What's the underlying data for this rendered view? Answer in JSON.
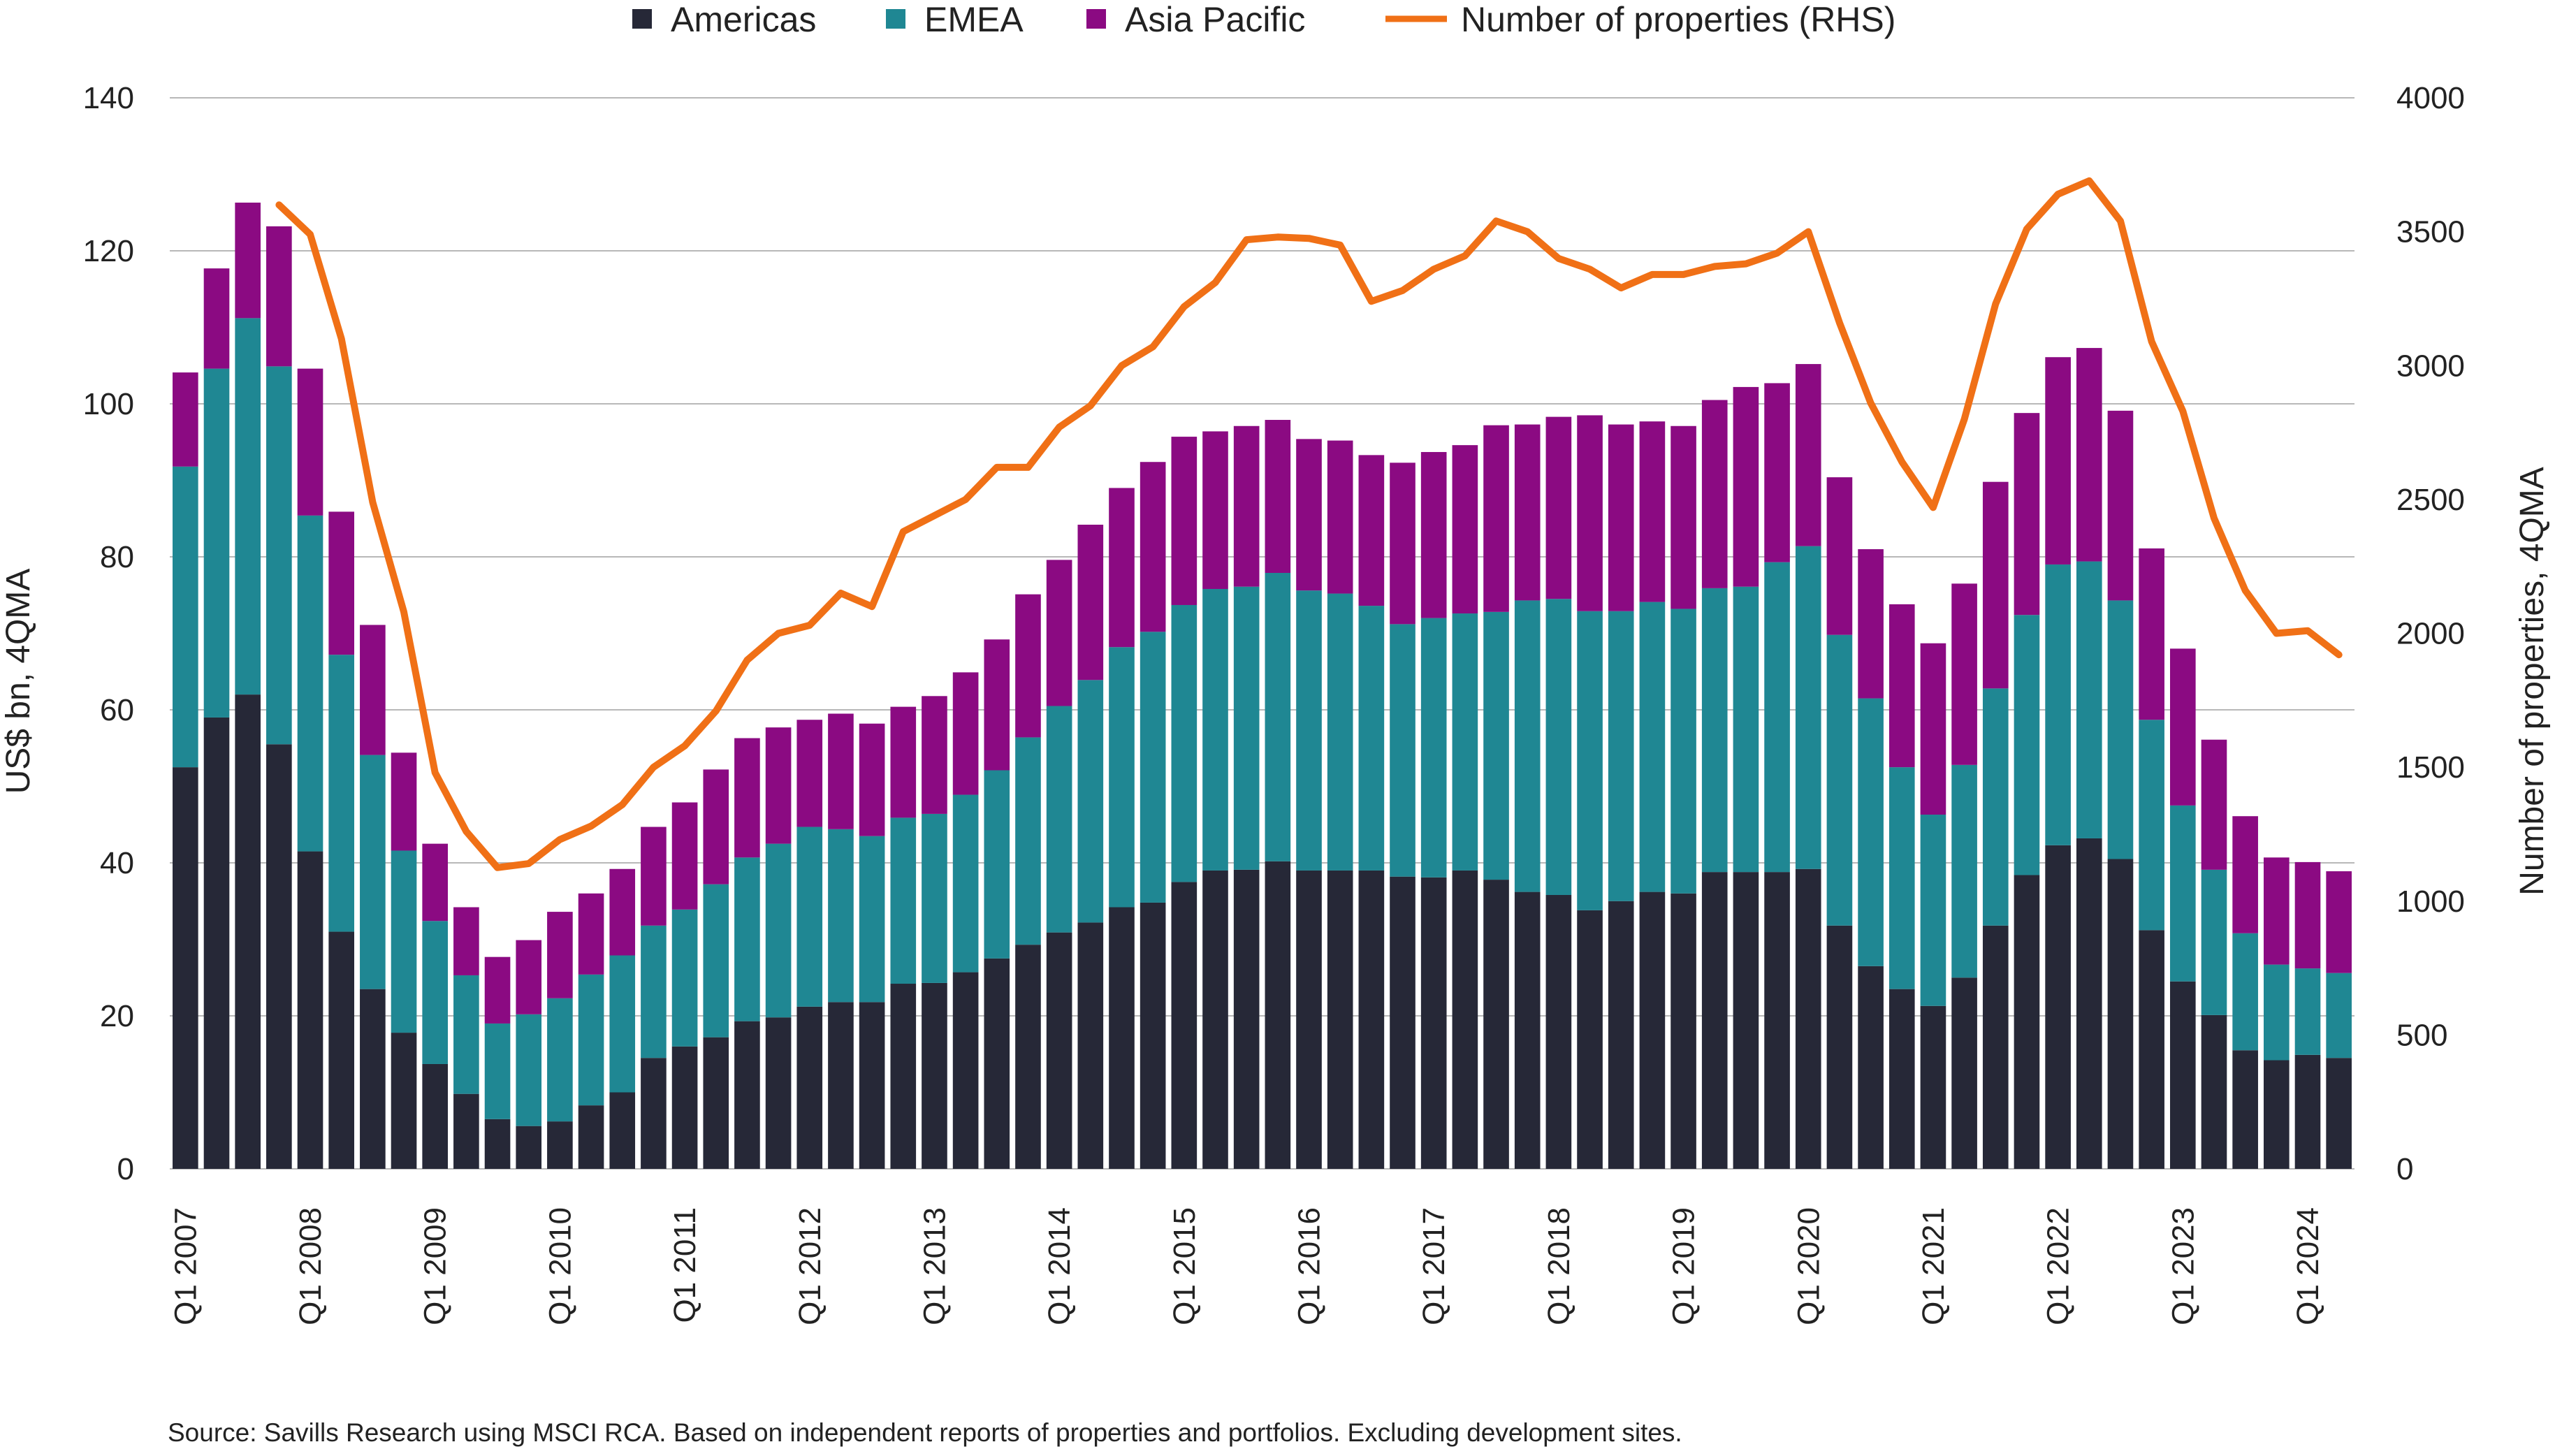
{
  "chart_data": {
    "type": "bar",
    "stacked": true,
    "legend": {
      "position": "top",
      "items": [
        {
          "label": "Americas",
          "kind": "bar"
        },
        {
          "label": "EMEA",
          "kind": "bar"
        },
        {
          "label": "Asia Pacific",
          "kind": "bar"
        },
        {
          "label": "Number of properties (RHS)",
          "kind": "line"
        }
      ]
    },
    "ylabel": "US$ bn, 4QMA",
    "y2label": "Number of properties, 4QMA",
    "ylim": [
      0,
      140
    ],
    "y2lim": [
      0,
      4000
    ],
    "yticks": [
      "0",
      "20",
      "40",
      "60",
      "80",
      "100",
      "120",
      "140"
    ],
    "y2ticks": [
      "0",
      "500",
      "1000",
      "1500",
      "2000",
      "2500",
      "3000",
      "3500",
      "4000"
    ],
    "grid": true,
    "x_tick_labels": [
      "Q1 2007",
      "Q1 2008",
      "Q1 2009",
      "Q1 2010",
      "Q1 2011",
      "Q1 2012",
      "Q1 2013",
      "Q1 2014",
      "Q1 2015",
      "Q1 2016",
      "Q1 2017",
      "Q1 2018",
      "Q1 2019",
      "Q1 2020",
      "Q1 2021",
      "Q1 2022",
      "Q1 2023",
      "Q1 2024"
    ],
    "categories": [
      "Q1 2007",
      "Q2 2007",
      "Q3 2007",
      "Q4 2007",
      "Q1 2008",
      "Q2 2008",
      "Q3 2008",
      "Q4 2008",
      "Q1 2009",
      "Q2 2009",
      "Q3 2009",
      "Q4 2009",
      "Q1 2010",
      "Q2 2010",
      "Q3 2010",
      "Q4 2010",
      "Q1 2011",
      "Q2 2011",
      "Q3 2011",
      "Q4 2011",
      "Q1 2012",
      "Q2 2012",
      "Q3 2012",
      "Q4 2012",
      "Q1 2013",
      "Q2 2013",
      "Q3 2013",
      "Q4 2013",
      "Q1 2014",
      "Q2 2014",
      "Q3 2014",
      "Q4 2014",
      "Q1 2015",
      "Q2 2015",
      "Q3 2015",
      "Q4 2015",
      "Q1 2016",
      "Q2 2016",
      "Q3 2016",
      "Q4 2016",
      "Q1 2017",
      "Q2 2017",
      "Q3 2017",
      "Q4 2017",
      "Q1 2018",
      "Q2 2018",
      "Q3 2018",
      "Q4 2018",
      "Q1 2019",
      "Q2 2019",
      "Q3 2019",
      "Q4 2019",
      "Q1 2020",
      "Q2 2020",
      "Q3 2020",
      "Q4 2020",
      "Q1 2021",
      "Q2 2021",
      "Q3 2021",
      "Q4 2021",
      "Q1 2022",
      "Q2 2022",
      "Q3 2022",
      "Q4 2022",
      "Q1 2023",
      "Q2 2023",
      "Q3 2023",
      "Q4 2023",
      "Q1 2024",
      "Q2 2024"
    ],
    "series": [
      {
        "name": "Americas",
        "color": "#262837",
        "values": [
          52.5,
          59,
          62,
          55.5,
          41.5,
          31,
          23.5,
          17.8,
          13.7,
          9.8,
          6.5,
          5.6,
          6.2,
          8.3,
          10,
          14.5,
          16,
          17.2,
          19.3,
          19.8,
          21.2,
          21.8,
          21.8,
          24.2,
          24.3,
          25.7,
          27.5,
          29.3,
          30.9,
          32.2,
          34.2,
          34.8,
          37.5,
          39,
          39.1,
          40.2,
          39,
          39,
          39,
          38.2,
          38.1,
          39,
          37.8,
          36.2,
          35.8,
          33.8,
          35,
          36.2,
          36,
          38.8,
          38.8,
          38.8,
          39.2,
          31.8,
          26.5,
          23.5,
          21.3,
          25,
          31.8,
          38.4,
          42.3,
          43.2,
          40.5,
          31.2,
          24.5,
          20.1,
          15.5,
          14.2,
          14.9,
          14.5
        ]
      },
      {
        "name": "EMEA",
        "color": "#1f8793",
        "values": [
          39.3,
          45.6,
          49.2,
          49.4,
          43.9,
          36.2,
          30.6,
          23.8,
          18.7,
          15.5,
          12.5,
          14.6,
          16.1,
          17.1,
          17.9,
          17.3,
          17.9,
          20,
          21.4,
          22.7,
          23.5,
          22.6,
          21.7,
          21.7,
          22.1,
          23.2,
          24.6,
          27.1,
          29.6,
          31.7,
          34,
          35.4,
          36.2,
          36.8,
          37,
          37.7,
          36.6,
          36.2,
          34.6,
          33,
          33.9,
          33.6,
          35,
          38.1,
          38.7,
          39.1,
          37.9,
          37.9,
          37.2,
          37.1,
          37.3,
          40.5,
          42.2,
          38,
          35,
          29,
          25,
          27.8,
          31,
          34,
          36.7,
          36.2,
          33.8,
          27.5,
          23,
          19,
          15.3,
          12.5,
          11.3,
          11.1
        ]
      },
      {
        "name": "Asia Pacific",
        "color": "#8b0a82",
        "values": [
          12.3,
          13.1,
          15.1,
          18.3,
          19.2,
          18.7,
          17,
          12.8,
          10.1,
          8.9,
          8.7,
          9.7,
          11.3,
          10.6,
          11.3,
          12.9,
          14,
          15,
          15.6,
          15.2,
          14,
          15.1,
          14.7,
          14.5,
          15.4,
          16,
          17.1,
          18.7,
          19.1,
          20.3,
          20.8,
          22.2,
          22,
          20.6,
          21,
          20,
          19.8,
          20,
          19.7,
          21.1,
          21.7,
          22,
          24.4,
          23,
          23.8,
          25.6,
          24.4,
          23.6,
          23.9,
          24.6,
          26.1,
          23.4,
          23.8,
          20.6,
          19.5,
          21.3,
          22.4,
          23.7,
          27,
          26.4,
          27.1,
          27.9,
          24.8,
          22.4,
          20.5,
          17,
          15.3,
          14,
          13.9,
          13.3
        ]
      },
      {
        "name": "Number of properties (RHS)",
        "type": "line",
        "color": "#f07016",
        "axis": "right",
        "values": [
          null,
          null,
          null,
          3600,
          3490,
          3100,
          2490,
          2080,
          1480,
          1260,
          1125,
          1140,
          1230,
          1280,
          1360,
          1500,
          1580,
          1710,
          1900,
          2000,
          2030,
          2150,
          2100,
          2380,
          2440,
          2500,
          2620,
          2620,
          2770,
          2850,
          3000,
          3070,
          3220,
          3310,
          3470,
          3480,
          3475,
          3450,
          3240,
          3280,
          3360,
          3410,
          3540,
          3500,
          3400,
          3360,
          3290,
          3340,
          3340,
          3370,
          3380,
          3420,
          3500,
          3160,
          2860,
          2640,
          2470,
          2800,
          3230,
          3510,
          3640,
          3690,
          3540,
          3090,
          2830,
          2430,
          2160,
          2000,
          2010,
          1920
        ]
      }
    ]
  },
  "source_note": "Source: Savills Research using MSCI RCA. Based on independent reports of properties and portfolios. Excluding development sites."
}
